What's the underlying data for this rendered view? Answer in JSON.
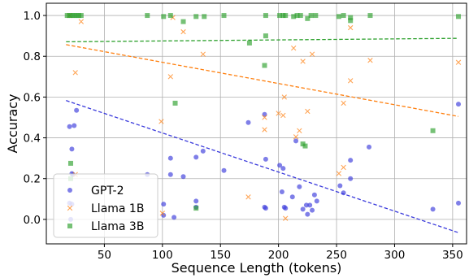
{
  "chart_data": {
    "type": "scatter",
    "title": "",
    "xlabel": "Sequence Length (tokens)",
    "ylabel": "Accuracy",
    "xlim": [
      0,
      362
    ],
    "ylim": [
      -0.12,
      1.06
    ],
    "xticks": [
      50,
      100,
      150,
      200,
      250,
      300,
      350
    ],
    "yticks": [
      0.0,
      0.2,
      0.4,
      0.6,
      0.8,
      1.0
    ],
    "xtick_labels": [
      "50",
      "100",
      "150",
      "200",
      "250",
      "300",
      "350"
    ],
    "ytick_labels": [
      "0.0",
      "0.2",
      "0.4",
      "0.6",
      "0.8",
      "1.0"
    ],
    "grid": true,
    "legend_position": "lower-left",
    "series": [
      {
        "name": "GPT-2",
        "marker": "circle",
        "color": "#3b3bdc",
        "trend": {
          "x": [
            17,
            355
          ],
          "y": [
            0.583,
            -0.065
          ]
        },
        "points": [
          [
            20,
            0.455
          ],
          [
            22,
            0.345
          ],
          [
            24,
            0.46
          ],
          [
            26,
            0.535
          ],
          [
            22,
            0.225
          ],
          [
            23,
            0.22
          ],
          [
            20,
            0.08
          ],
          [
            22,
            0.075
          ],
          [
            21,
            0.0
          ],
          [
            87,
            0.22
          ],
          [
            101,
            0.075
          ],
          [
            101,
            0.02
          ],
          [
            107,
            0.3
          ],
          [
            107,
            0.22
          ],
          [
            110,
            0.01
          ],
          [
            118,
            0.21
          ],
          [
            129,
            0.305
          ],
          [
            129,
            0.09
          ],
          [
            129,
            0.06
          ],
          [
            135,
            0.335
          ],
          [
            153,
            0.24
          ],
          [
            174,
            0.475
          ],
          [
            188,
            0.515
          ],
          [
            189,
            0.295
          ],
          [
            188,
            0.06
          ],
          [
            189,
            0.055
          ],
          [
            201,
            0.265
          ],
          [
            203,
            0.135
          ],
          [
            204,
            0.25
          ],
          [
            205,
            0.06
          ],
          [
            206,
            0.055
          ],
          [
            212,
            0.11
          ],
          [
            215,
            0.385
          ],
          [
            218,
            0.16
          ],
          [
            221,
            0.05
          ],
          [
            224,
            0.07
          ],
          [
            225,
            0.025
          ],
          [
            227,
            0.07
          ],
          [
            229,
            0.045
          ],
          [
            231,
            0.12
          ],
          [
            233,
            0.09
          ],
          [
            253,
            0.165
          ],
          [
            256,
            0.13
          ],
          [
            262,
            0.29
          ],
          [
            262,
            0.2
          ],
          [
            278,
            0.355
          ],
          [
            333,
            0.05
          ],
          [
            355,
            0.565
          ],
          [
            355,
            0.08
          ]
        ]
      },
      {
        "name": "Llama 1B",
        "marker": "x",
        "color": "#ff7f0e",
        "trend": {
          "x": [
            17,
            355
          ],
          "y": [
            0.857,
            0.505
          ]
        },
        "points": [
          [
            25,
            0.72
          ],
          [
            25,
            0.22
          ],
          [
            30,
            0.97
          ],
          [
            20,
            1.0
          ],
          [
            99,
            0.48
          ],
          [
            100,
            0.03
          ],
          [
            107,
            0.7
          ],
          [
            109,
            0.99
          ],
          [
            118,
            0.92
          ],
          [
            135,
            0.81
          ],
          [
            174,
            0.11
          ],
          [
            188,
            0.44
          ],
          [
            188,
            0.5
          ],
          [
            200,
            0.52
          ],
          [
            204,
            0.51
          ],
          [
            205,
            0.6
          ],
          [
            206,
            0.005
          ],
          [
            213,
            0.84
          ],
          [
            215,
            0.405
          ],
          [
            218,
            0.435
          ],
          [
            221,
            0.775
          ],
          [
            225,
            0.53
          ],
          [
            229,
            0.81
          ],
          [
            252,
            0.225
          ],
          [
            256,
            0.255
          ],
          [
            256,
            0.57
          ],
          [
            262,
            0.68
          ],
          [
            262,
            0.94
          ],
          [
            279,
            0.78
          ],
          [
            355,
            0.77
          ]
        ]
      },
      {
        "name": "Llama 3B",
        "marker": "square",
        "color": "#2ca02c",
        "trend": {
          "x": [
            17,
            355
          ],
          "y": [
            0.871,
            0.888
          ]
        },
        "points": [
          [
            18,
            1.0
          ],
          [
            20,
            1.0
          ],
          [
            22,
            1.0
          ],
          [
            24,
            1.0
          ],
          [
            26,
            1.0
          ],
          [
            28,
            1.0
          ],
          [
            30,
            1.0
          ],
          [
            21,
            0.275
          ],
          [
            21,
            0.2
          ],
          [
            87,
            1.0
          ],
          [
            101,
            0.995
          ],
          [
            107,
            1.0
          ],
          [
            111,
            0.57
          ],
          [
            118,
            0.97
          ],
          [
            129,
            0.995
          ],
          [
            129,
            0.055
          ],
          [
            136,
            0.995
          ],
          [
            153,
            1.0
          ],
          [
            175,
            0.865
          ],
          [
            188,
            0.755
          ],
          [
            189,
            0.9
          ],
          [
            189,
            1.0
          ],
          [
            201,
            1.0
          ],
          [
            204,
            1.0
          ],
          [
            206,
            1.0
          ],
          [
            213,
            0.995
          ],
          [
            216,
            1.0
          ],
          [
            219,
            1.0
          ],
          [
            221,
            0.37
          ],
          [
            223,
            0.36
          ],
          [
            225,
            0.985
          ],
          [
            228,
            1.0
          ],
          [
            232,
            1.0
          ],
          [
            252,
            0.995
          ],
          [
            256,
            1.0
          ],
          [
            262,
            0.975
          ],
          [
            262,
            0.99
          ],
          [
            279,
            1.0
          ],
          [
            333,
            0.435
          ],
          [
            355,
            0.995
          ]
        ]
      }
    ]
  }
}
